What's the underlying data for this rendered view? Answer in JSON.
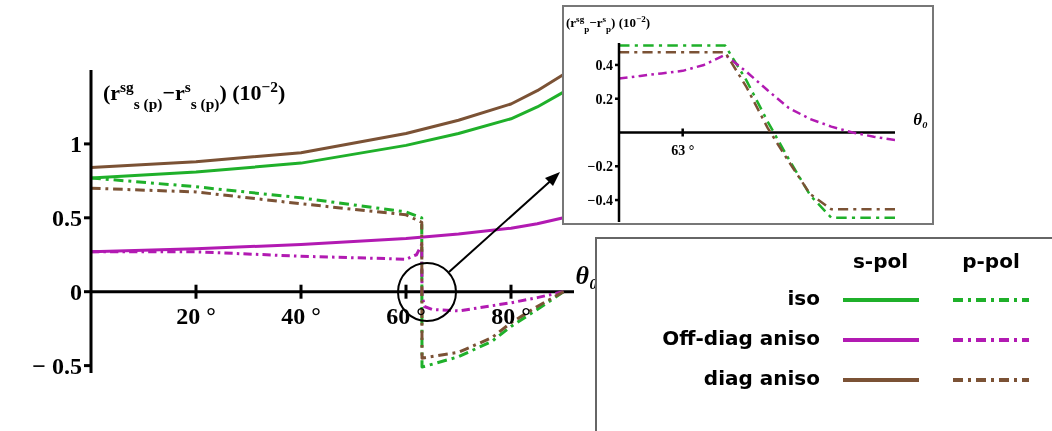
{
  "chart_data": [
    {
      "type": "line",
      "ylabel": "(r$^{sg}$$_{s (p)}$−r$^{s}$$_{s (p)}$) (10$^{−2}$)",
      "xlabel": "θ₀",
      "xlim": [
        0,
        92
      ],
      "ylim": [
        -0.55,
        1.5
      ],
      "xticks": [
        {
          "value": 20,
          "label": "20 °"
        },
        {
          "value": 40,
          "label": "40 °"
        },
        {
          "value": 60,
          "label": "60 °"
        },
        {
          "value": 80,
          "label": "80 °"
        }
      ],
      "yticks": [
        {
          "value": -0.5,
          "label": "− 0.5"
        },
        0,
        0.5,
        1
      ],
      "legend": "bottom right",
      "annotations": [
        "s-pol",
        "p-pol"
      ],
      "series": [
        {
          "name": "iso",
          "color": "#1fb02a",
          "line_style": "solid",
          "x": [
            0,
            20,
            40,
            60,
            70,
            80,
            85,
            90
          ],
          "values": [
            0.77,
            0.81,
            0.87,
            0.99,
            1.07,
            1.17,
            1.25,
            1.35
          ]
        },
        {
          "name": "Off-diag aniso",
          "color": "#b21ab2",
          "line_style": "solid",
          "x": [
            0,
            20,
            40,
            60,
            70,
            80,
            85,
            90
          ],
          "values": [
            0.27,
            0.29,
            0.32,
            0.36,
            0.39,
            0.43,
            0.46,
            0.5
          ]
        },
        {
          "name": "diag aniso",
          "color": "#7b5235",
          "line_style": "solid",
          "x": [
            0,
            20,
            40,
            60,
            70,
            80,
            85,
            90
          ],
          "values": [
            0.84,
            0.88,
            0.94,
            1.07,
            1.16,
            1.27,
            1.36,
            1.47
          ]
        },
        {
          "color": "#1fb02a",
          "line_style": "dashed",
          "x": [
            0,
            20,
            40,
            60,
            63,
            63.05,
            70,
            76.4,
            80,
            85,
            90
          ],
          "values": [
            0.77,
            0.71,
            0.635,
            0.54,
            0.5,
            -0.51,
            -0.44,
            -0.335,
            -0.235,
            -0.12,
            0
          ]
        },
        {
          "color": "#b21ab2",
          "line_style": "dashed",
          "x": [
            0,
            20,
            40,
            60,
            62,
            63,
            63.05,
            63.5,
            65,
            70,
            80,
            85,
            90
          ],
          "values": [
            0.27,
            0.27,
            0.24,
            0.22,
            0.25,
            0.32,
            -0.02,
            -0.1,
            -0.12,
            -0.13,
            -0.075,
            -0.04,
            0
          ]
        },
        {
          "color": "#7b5235",
          "line_style": "dashed",
          "x": [
            0,
            20,
            40,
            60,
            63,
            63.05,
            70,
            76.4,
            80,
            85,
            90
          ],
          "values": [
            0.7,
            0.675,
            0.595,
            0.52,
            0.47,
            -0.45,
            -0.41,
            -0.31,
            -0.21,
            -0.1,
            0
          ]
        }
      ]
    },
    {
      "type": "line",
      "ylabel": "(r$^{sg}$$_{p}$−r$^{s}$$_{p}$) (10$^{−2}$)",
      "xlabel": "θ₀",
      "categories": [
        null,
        null,
        null,
        "63 °",
        null,
        null,
        null,
        null,
        null,
        null,
        null,
        null,
        null,
        null
      ],
      "ylim": [
        -0.53,
        0.53
      ],
      "yticks": [
        {
          "value": -0.4,
          "label": "−0.4"
        },
        {
          "value": -0.2,
          "label": "−0.2"
        },
        0.2,
        0.4
      ],
      "series": [
        {
          "color": "#1fb02a",
          "line_style": "dashed",
          "values": [
            0.515,
            0.515,
            0.515,
            0.515,
            0.515,
            0.515,
            0.309,
            0.065,
            -0.158,
            -0.371,
            -0.505,
            -0.505,
            -0.505,
            -0.505
          ]
        },
        {
          "color": "#b21ab2",
          "line_style": "dashed",
          "values": [
            0.32,
            0.335,
            0.35,
            0.365,
            0.4,
            0.46,
            0.36,
            0.25,
            0.145,
            0.08,
            0.035,
            0,
            -0.025,
            -0.045
          ]
        },
        {
          "color": "#7b5235",
          "line_style": "dashed",
          "values": [
            0.475,
            0.475,
            0.475,
            0.475,
            0.475,
            0.475,
            0.27,
            0.027,
            -0.173,
            -0.364,
            -0.455,
            -0.455,
            -0.455,
            -0.455
          ]
        }
      ]
    }
  ]
}
